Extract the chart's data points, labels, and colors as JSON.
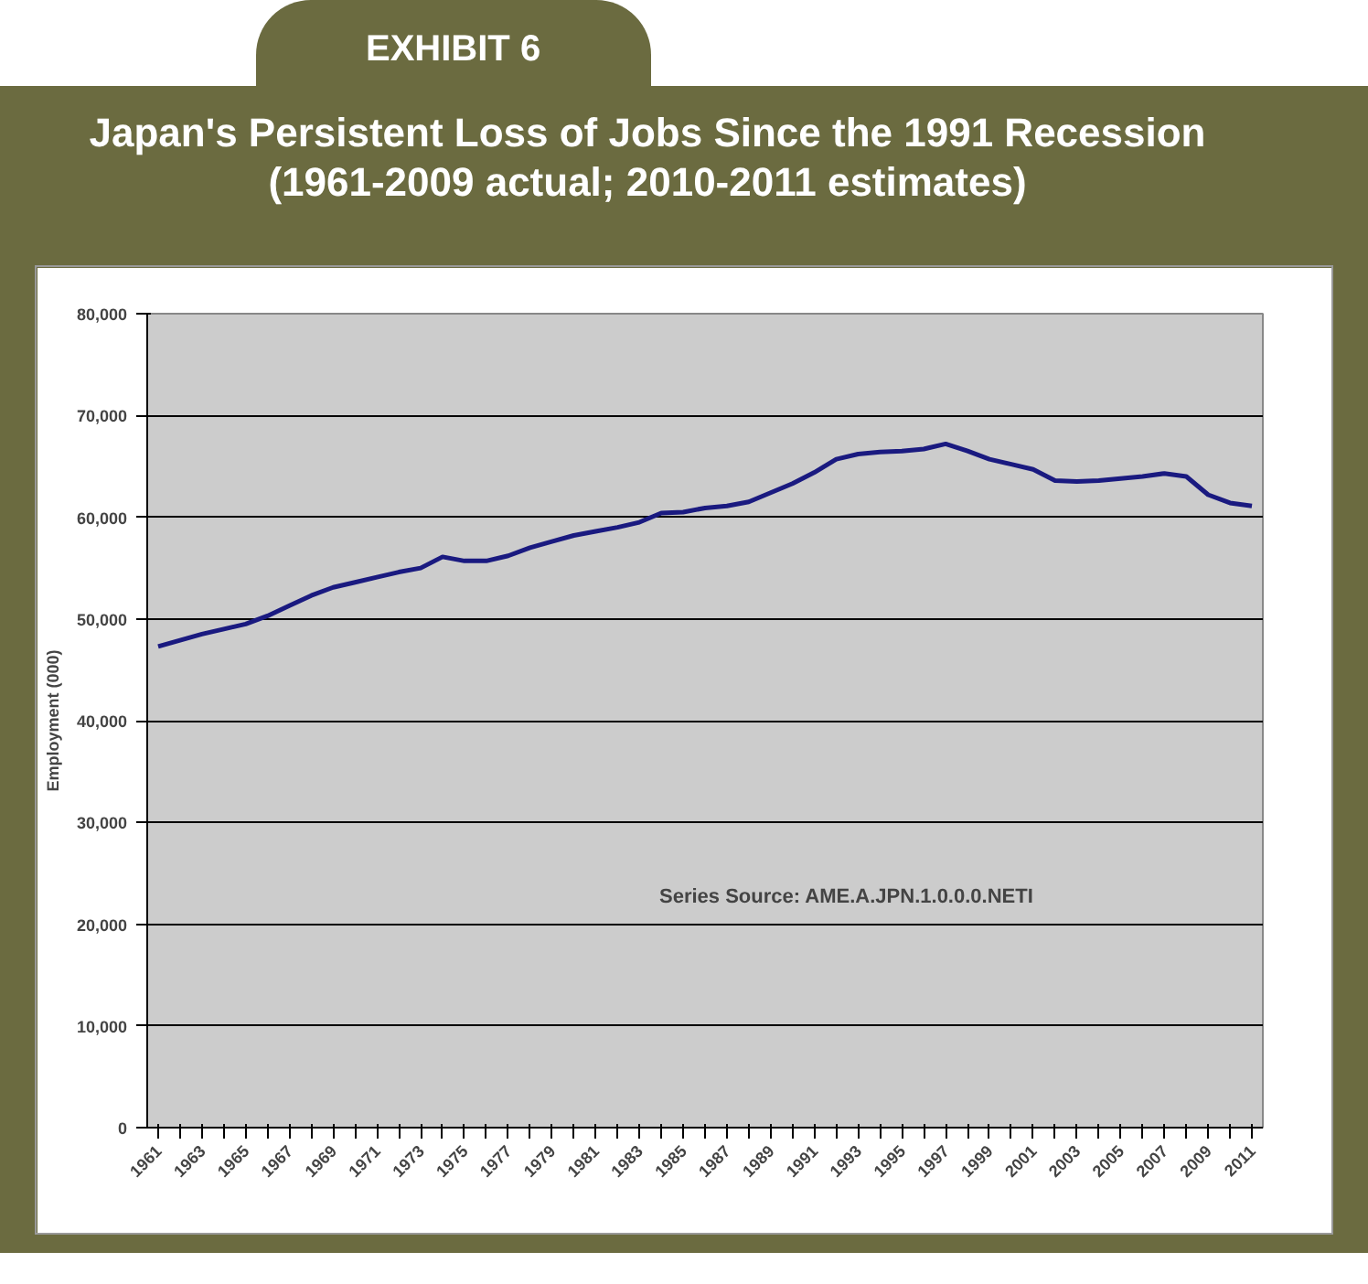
{
  "chart_data": {
    "type": "line",
    "title": "Japan's Persistent Loss of Jobs Since the 1991 Recession (1961-2009 actual; 2010-2011 estimates)",
    "ylabel": "Employment (000)",
    "annotations": [
      "EXHIBIT 6",
      "Series Source: AME.A.JPN.1.0.0.0.NETI"
    ],
    "categories": [
      "1961",
      null,
      "1963",
      null,
      "1965",
      null,
      "1967",
      null,
      "1969",
      null,
      "1971",
      null,
      "1973",
      null,
      "1975",
      null,
      "1977",
      null,
      "1979",
      null,
      "1981",
      null,
      "1983",
      null,
      "1985",
      null,
      "1987",
      null,
      "1989",
      null,
      "1991",
      null,
      "1993",
      null,
      "1995",
      null,
      "1997",
      null,
      "1999",
      null,
      "2001",
      null,
      "2003",
      null,
      "2005",
      null,
      "2007",
      null,
      "2009",
      null,
      "2011"
    ],
    "series": [
      {
        "color": "#1a1a80",
        "values": [
          47300,
          47900,
          48500,
          49000,
          49500,
          50300,
          51300,
          52300,
          53100,
          53600,
          54100,
          54600,
          55000,
          56100,
          55700,
          55700,
          56200,
          57000,
          57600,
          58200,
          58600,
          59000,
          59500,
          60400,
          60500,
          60900,
          61100,
          61500,
          62400,
          63300,
          64400,
          65700,
          66200,
          66400,
          66500,
          66700,
          67200,
          66500,
          65700,
          65200,
          64700,
          63600,
          63500,
          63600,
          63800,
          64000,
          64300,
          64000,
          62200,
          61400,
          61100
        ]
      }
    ],
    "ylim": [
      0,
      80000
    ],
    "yticks": [
      0,
      {
        "value": 10000,
        "label": "10,000"
      },
      {
        "value": 20000,
        "label": "20,000"
      },
      {
        "value": 30000,
        "label": "30,000"
      },
      {
        "value": 40000,
        "label": "40,000"
      },
      {
        "value": 50000,
        "label": "50,000"
      },
      {
        "value": 60000,
        "label": "60,000"
      },
      {
        "value": 70000,
        "label": "70,000"
      },
      {
        "value": 80000,
        "label": "80,000"
      }
    ],
    "grid": "y",
    "marker": "none",
    "line_style": "solid"
  }
}
